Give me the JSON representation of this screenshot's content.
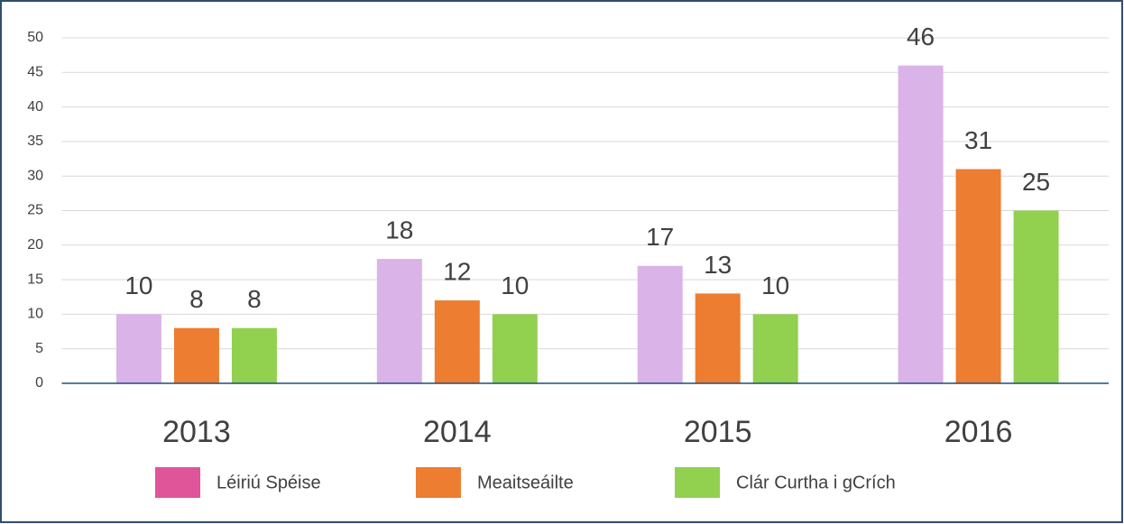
{
  "chart_data": {
    "type": "bar",
    "categories": [
      "2013",
      "2014",
      "2015",
      "2016"
    ],
    "series": [
      {
        "name": "Léiriú Spéise",
        "color": "#dab3e8",
        "legend_color": "#e0549a",
        "values": [
          10,
          18,
          17,
          46
        ]
      },
      {
        "name": "Meaitseáilte",
        "color": "#ed7d31",
        "values": [
          8,
          12,
          13,
          31
        ]
      },
      {
        "name": "Clár Curtha i gCrích",
        "color": "#92d050",
        "values": [
          8,
          10,
          10,
          25
        ]
      }
    ],
    "ylim": [
      0,
      50
    ],
    "yticks": [
      0,
      5,
      10,
      15,
      20,
      25,
      30,
      35,
      40,
      45,
      50
    ],
    "grid": true,
    "legend": "bottom"
  }
}
